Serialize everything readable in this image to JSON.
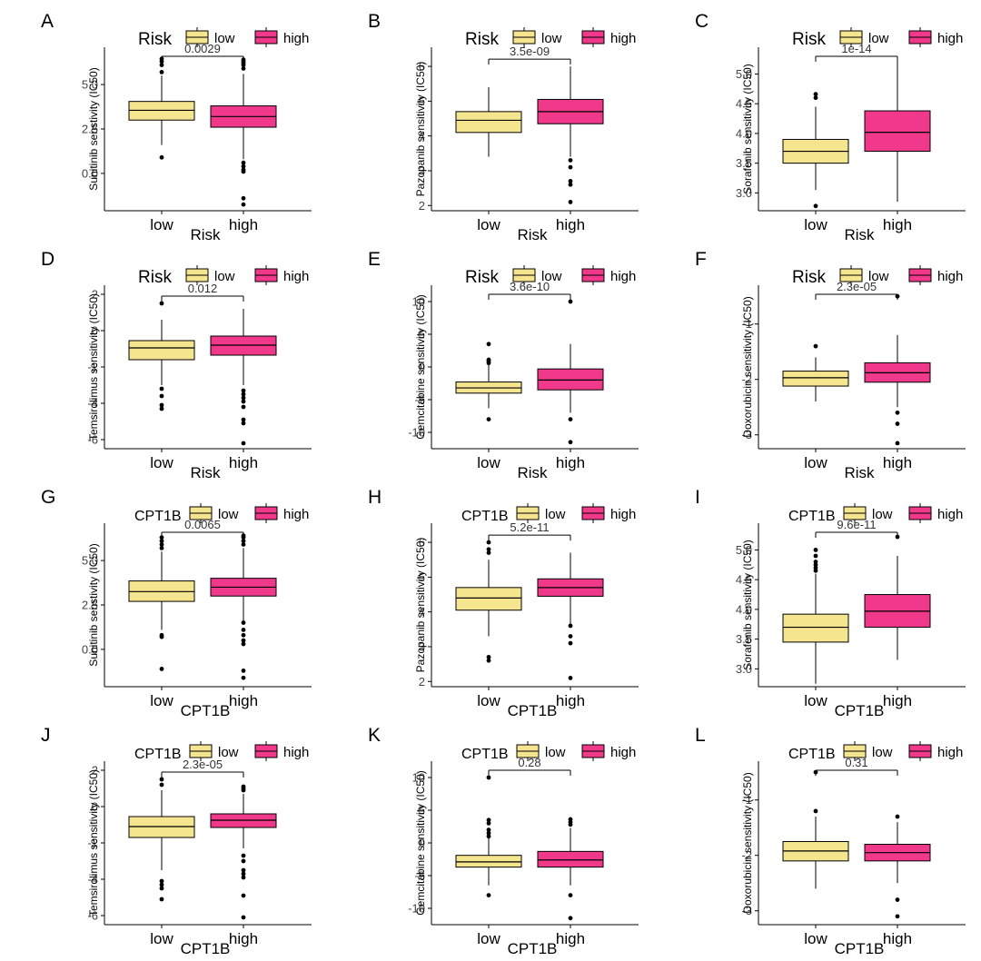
{
  "colors": {
    "low": "#F6E58F",
    "high": "#F0398B",
    "axis": "#000000",
    "outlier": "#000000"
  },
  "chart_data": [
    {
      "panel": "A",
      "type": "box",
      "title": "",
      "group_var": "Risk",
      "legend": {
        "title": "Risk",
        "entries": [
          "low",
          "high"
        ],
        "placement": "top"
      },
      "ylabel": "Sunitinib senstivity (IC50)",
      "xlabel": "Risk",
      "categories": [
        "low",
        "high"
      ],
      "ylim": [
        -2.1,
        7.1
      ],
      "yticks": [
        "0.0",
        "2.5",
        "5.0"
      ],
      "pvalue": "0.0029",
      "series": [
        {
          "name": "low",
          "q1": 3.0,
          "median": 3.55,
          "q3": 4.05,
          "whisker_low": 1.6,
          "whisker_high": 5.5,
          "outliers": [
            0.9,
            5.7,
            6.1,
            6.3,
            6.45
          ]
        },
        {
          "name": "high",
          "q1": 2.6,
          "median": 3.2,
          "q3": 3.8,
          "whisker_low": 0.8,
          "whisker_high": 5.6,
          "outliers": [
            0.6,
            0.4,
            0.2,
            0.1,
            -1.4,
            -1.75,
            5.9,
            6.1,
            6.2,
            6.3,
            6.4
          ]
        }
      ]
    },
    {
      "panel": "B",
      "type": "box",
      "title": "",
      "group_var": "Risk",
      "legend": {
        "title": "Risk",
        "entries": [
          "low",
          "high"
        ],
        "placement": "top"
      },
      "ylabel": "Pazopanib sensitivity (IC50)",
      "xlabel": "Risk",
      "categories": [
        "low",
        "high"
      ],
      "ylim": [
        1.85,
        6.55
      ],
      "yticks": [
        "2",
        "3",
        "4",
        "5",
        "6"
      ],
      "pvalue": "3.5e-09",
      "series": [
        {
          "name": "low",
          "q1": 4.1,
          "median": 4.45,
          "q3": 4.7,
          "whisker_low": 3.4,
          "whisker_high": 5.4,
          "outliers": []
        },
        {
          "name": "high",
          "q1": 4.35,
          "median": 4.7,
          "q3": 5.05,
          "whisker_low": 3.4,
          "whisker_high": 6.0,
          "outliers": [
            3.3,
            3.1,
            2.7,
            2.6,
            2.1
          ]
        }
      ]
    },
    {
      "panel": "C",
      "type": "box",
      "title": "",
      "group_var": "Risk",
      "legend": {
        "title": "Risk",
        "entries": [
          "low",
          "high"
        ],
        "placement": "top"
      },
      "ylabel": "Sorafenib sensitivity (IC50)",
      "xlabel": "Risk",
      "categories": [
        "low",
        "high"
      ],
      "ylim": [
        2.7,
        5.45
      ],
      "yticks": [
        "3.0",
        "3.5",
        "4.0",
        "4.5",
        "5.0"
      ],
      "pvalue": "1e-14",
      "series": [
        {
          "name": "low",
          "q1": 3.5,
          "median": 3.7,
          "q3": 3.9,
          "whisker_low": 3.05,
          "whisker_high": 4.45,
          "outliers": [
            2.78,
            4.6,
            4.66
          ]
        },
        {
          "name": "high",
          "q1": 3.7,
          "median": 4.02,
          "q3": 4.38,
          "whisker_low": 2.85,
          "whisker_high": 5.25,
          "outliers": []
        }
      ]
    },
    {
      "panel": "D",
      "type": "box",
      "title": "",
      "group_var": "Risk",
      "legend": {
        "title": "Risk",
        "entries": [
          "low",
          "high"
        ],
        "placement": "top"
      },
      "ylabel": "Temsirolimus sensitivity (IC50)",
      "xlabel": "Risk",
      "categories": [
        "low",
        "high"
      ],
      "ylim": [
        -6.5,
        2.5
      ],
      "yticks": [
        "-6",
        "-4",
        "-2",
        "0",
        "2"
      ],
      "pvalue": "0.012",
      "series": [
        {
          "name": "low",
          "q1": -1.6,
          "median": -0.95,
          "q3": -0.55,
          "whisker_low": -3.0,
          "whisker_high": 0.6,
          "outliers": [
            -3.2,
            -3.6,
            -4.1,
            -4.3,
            1.5
          ]
        },
        {
          "name": "high",
          "q1": -1.35,
          "median": -0.8,
          "q3": -0.3,
          "whisker_low": -3.0,
          "whisker_high": 1.2,
          "outliers": [
            -3.3,
            -3.5,
            -3.7,
            -3.9,
            -4.2,
            -4.9,
            -5.1,
            -6.2
          ]
        }
      ]
    },
    {
      "panel": "E",
      "type": "box",
      "title": "",
      "group_var": "Risk",
      "legend": {
        "title": "Risk",
        "entries": [
          "low",
          "high"
        ],
        "placement": "top"
      },
      "ylabel": "Gemcitabine sensitivity (IC50)",
      "xlabel": "Risk",
      "categories": [
        "low",
        "high"
      ],
      "ylim": [
        -12.5,
        12.5
      ],
      "yticks": [
        "-10",
        "-5",
        "0",
        "5",
        "10"
      ],
      "pvalue": "3.6e-10",
      "series": [
        {
          "name": "low",
          "q1": -4.0,
          "median": -3.2,
          "q3": -2.3,
          "whisker_low": -6.3,
          "whisker_high": 0.5,
          "outliers": [
            -8.0,
            0.6,
            0.9,
            1.1,
            3.5
          ]
        },
        {
          "name": "high",
          "q1": -3.5,
          "median": -2.0,
          "q3": -0.3,
          "whisker_low": -7.0,
          "whisker_high": 3.5,
          "outliers": [
            -8.0,
            -11.5,
            10.0
          ]
        }
      ]
    },
    {
      "panel": "F",
      "type": "box",
      "title": "",
      "group_var": "Risk",
      "legend": {
        "title": "Risk",
        "entries": [
          "low",
          "high"
        ],
        "placement": "top"
      },
      "ylabel": "Doxorubicin sensitivity (IC50)",
      "xlabel": "Risk",
      "categories": [
        "low",
        "high"
      ],
      "ylim": [
        -3.25,
        -0.3
      ],
      "yticks": [
        "-3",
        "-2",
        "-1"
      ],
      "pvalue": "2.3e-05",
      "series": [
        {
          "name": "low",
          "q1": -2.12,
          "median": -1.97,
          "q3": -1.85,
          "whisker_low": -2.4,
          "whisker_high": -1.6,
          "outliers": [
            -1.4
          ]
        },
        {
          "name": "high",
          "q1": -2.05,
          "median": -1.88,
          "q3": -1.7,
          "whisker_low": -2.5,
          "whisker_high": -1.2,
          "outliers": [
            -2.6,
            -2.8,
            -3.15,
            -0.5
          ]
        }
      ]
    },
    {
      "panel": "G",
      "type": "box",
      "title": "",
      "group_var": "CPT1B",
      "legend": {
        "title": "CPT1B",
        "entries": [
          "low",
          "high"
        ],
        "placement": "top"
      },
      "ylabel": "Sunitinib senstivity (IC50)",
      "xlabel": "CPT1B",
      "categories": [
        "low",
        "high"
      ],
      "ylim": [
        -2.1,
        7.1
      ],
      "yticks": [
        "0.0",
        "2.5",
        "5.0"
      ],
      "pvalue": "0.0065",
      "series": [
        {
          "name": "low",
          "q1": 2.7,
          "median": 3.25,
          "q3": 3.85,
          "whisker_low": 1.1,
          "whisker_high": 5.5,
          "outliers": [
            0.8,
            0.7,
            -1.1,
            5.7,
            5.9,
            6.1,
            6.3
          ]
        },
        {
          "name": "high",
          "q1": 3.0,
          "median": 3.5,
          "q3": 4.0,
          "whisker_low": 1.6,
          "whisker_high": 5.7,
          "outliers": [
            1.5,
            1.1,
            0.8,
            0.5,
            0.3,
            -1.2,
            -1.6,
            5.9,
            6.1,
            6.3,
            6.4
          ]
        }
      ]
    },
    {
      "panel": "H",
      "type": "box",
      "title": "",
      "group_var": "CPT1B",
      "legend": {
        "title": "CPT1B",
        "entries": [
          "low",
          "high"
        ],
        "placement": "top"
      },
      "ylabel": "Pazopanib sensitivity (IC50)",
      "xlabel": "CPT1B",
      "categories": [
        "low",
        "high"
      ],
      "ylim": [
        1.85,
        6.55
      ],
      "yticks": [
        "2",
        "3",
        "4",
        "5",
        "6"
      ],
      "pvalue": "5.2e-11",
      "series": [
        {
          "name": "low",
          "q1": 4.05,
          "median": 4.4,
          "q3": 4.7,
          "whisker_low": 3.3,
          "whisker_high": 5.5,
          "outliers": [
            2.7,
            2.6,
            5.7,
            5.8,
            6.0
          ]
        },
        {
          "name": "high",
          "q1": 4.45,
          "median": 4.7,
          "q3": 4.95,
          "whisker_low": 3.65,
          "whisker_high": 5.7,
          "outliers": [
            3.6,
            3.3,
            3.1,
            2.1
          ]
        }
      ]
    },
    {
      "panel": "I",
      "type": "box",
      "title": "",
      "group_var": "CPT1B",
      "legend": {
        "title": "CPT1B",
        "entries": [
          "low",
          "high"
        ],
        "placement": "top"
      },
      "ylabel": "Sorafenib sensitivity (IC50)",
      "xlabel": "CPT1B",
      "categories": [
        "low",
        "high"
      ],
      "ylim": [
        2.7,
        5.45
      ],
      "yticks": [
        "3.0",
        "3.5",
        "4.0",
        "4.5",
        "5.0"
      ],
      "pvalue": "9.6e-11",
      "series": [
        {
          "name": "low",
          "q1": 3.45,
          "median": 3.7,
          "q3": 3.92,
          "whisker_low": 2.75,
          "whisker_high": 4.6,
          "outliers": [
            4.65,
            4.7,
            4.75,
            4.8,
            4.9,
            5.0
          ]
        },
        {
          "name": "high",
          "q1": 3.7,
          "median": 3.97,
          "q3": 4.25,
          "whisker_low": 3.15,
          "whisker_high": 4.9,
          "outliers": [
            5.22
          ]
        }
      ]
    },
    {
      "panel": "J",
      "type": "box",
      "title": "",
      "group_var": "CPT1B",
      "legend": {
        "title": "CPT1B",
        "entries": [
          "low",
          "high"
        ],
        "placement": "top"
      },
      "ylabel": "Temsirolimus sensitivity (IC50)",
      "xlabel": "CPT1B",
      "categories": [
        "low",
        "high"
      ],
      "ylim": [
        -6.5,
        2.5
      ],
      "yticks": [
        "-6",
        "-4",
        "-2",
        "0",
        "2"
      ],
      "pvalue": "2.3e-05",
      "series": [
        {
          "name": "low",
          "q1": -1.7,
          "median": -1.1,
          "q3": -0.55,
          "whisker_low": -3.5,
          "whisker_high": 0.9,
          "outliers": [
            -4.1,
            -4.3,
            -4.5,
            -5.1,
            1.2,
            1.5
          ]
        },
        {
          "name": "high",
          "q1": -1.15,
          "median": -0.75,
          "q3": -0.4,
          "whisker_low": -2.3,
          "whisker_high": 0.7,
          "outliers": [
            -2.7,
            -3.0,
            -3.5,
            -3.7,
            -3.9,
            -4.9,
            -6.1,
            0.9,
            1.0,
            1.1
          ]
        }
      ]
    },
    {
      "panel": "K",
      "type": "box",
      "title": "",
      "group_var": "CPT1B",
      "legend": {
        "title": "CPT1B",
        "entries": [
          "low",
          "high"
        ],
        "placement": "top"
      },
      "ylabel": "Gemcitabine sensitivity (IC50)",
      "xlabel": "CPT1B",
      "categories": [
        "low",
        "high"
      ],
      "ylim": [
        -12.5,
        12.5
      ],
      "yticks": [
        "-10",
        "-5",
        "0",
        "5",
        "10"
      ],
      "pvalue": "0.28",
      "series": [
        {
          "name": "low",
          "q1": -3.7,
          "median": -2.9,
          "q3": -1.9,
          "whisker_low": -6.5,
          "whisker_high": 0.7,
          "outliers": [
            -8.0,
            1.0,
            1.5,
            2.0,
            3.0,
            3.5,
            10.0
          ]
        },
        {
          "name": "high",
          "q1": -3.7,
          "median": -2.6,
          "q3": -1.3,
          "whisker_low": -6.5,
          "whisker_high": 2.3,
          "outliers": [
            -8.0,
            -11.5,
            2.8,
            3.2,
            3.6
          ]
        }
      ]
    },
    {
      "panel": "L",
      "type": "box",
      "title": "",
      "group_var": "CPT1B",
      "legend": {
        "title": "CPT1B",
        "entries": [
          "low",
          "high"
        ],
        "placement": "top"
      },
      "ylabel": "Doxorubicin sensitivity (IC50)",
      "xlabel": "CPT1B",
      "categories": [
        "low",
        "high"
      ],
      "ylim": [
        -3.25,
        -0.3
      ],
      "yticks": [
        "-3",
        "-2",
        "-1"
      ],
      "pvalue": "0.31",
      "series": [
        {
          "name": "low",
          "q1": -2.1,
          "median": -1.92,
          "q3": -1.75,
          "whisker_low": -2.6,
          "whisker_high": -1.3,
          "outliers": [
            -1.2,
            -0.5
          ]
        },
        {
          "name": "high",
          "q1": -2.1,
          "median": -1.95,
          "q3": -1.8,
          "whisker_low": -2.5,
          "whisker_high": -1.4,
          "outliers": [
            -2.8,
            -3.1,
            -1.3
          ]
        }
      ]
    }
  ]
}
